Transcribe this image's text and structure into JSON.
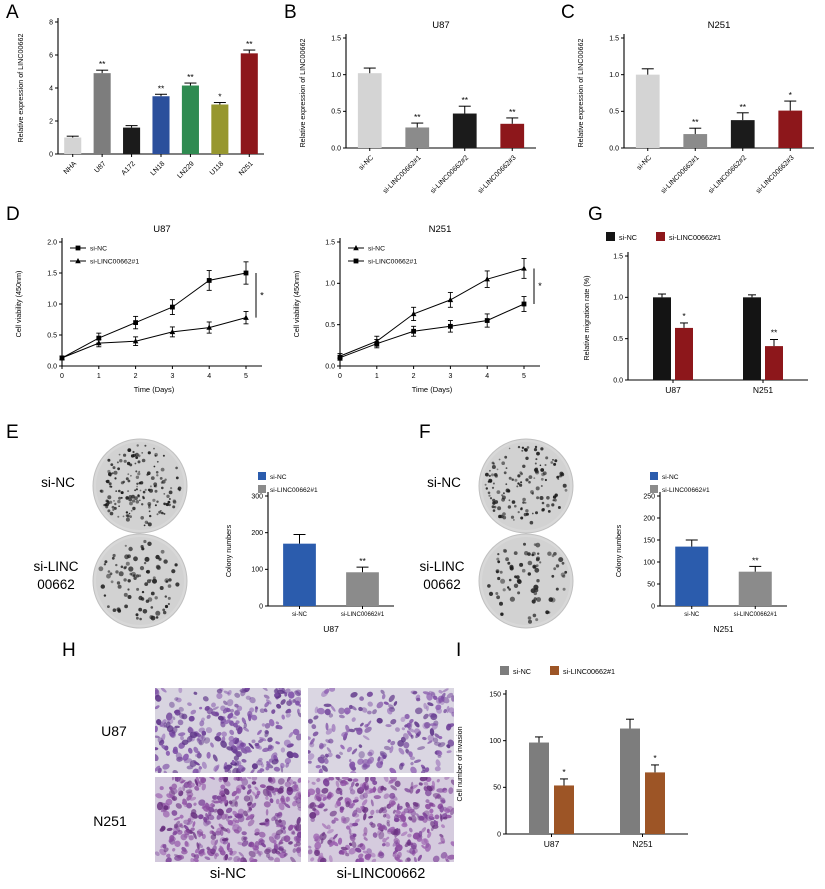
{
  "panel_labels": {
    "A": "A",
    "B": "B",
    "C": "C",
    "D": "D",
    "E": "E",
    "F": "F",
    "G": "G",
    "H": "H",
    "I": "I"
  },
  "panel_e": {
    "row1_label": "si-NC",
    "row2_line1": "si-LINC",
    "row2_line2": "00662"
  },
  "panel_f": {
    "row1_label": "si-NC",
    "row2_line1": "si-LINC",
    "row2_line2": "00662"
  },
  "panel_h": {
    "row1_label": "U87",
    "row2_label": "N251",
    "col1_label": "si-NC",
    "col2_label": "si-LINC00662"
  },
  "colony_plates": {
    "e_top": {
      "dots": 170,
      "rmin": 0.8,
      "rmax": 2.0,
      "seed": 11
    },
    "e_bottom": {
      "dots": 95,
      "rmin": 1.1,
      "rmax": 2.6,
      "seed": 22
    },
    "f_top": {
      "dots": 135,
      "rmin": 0.8,
      "rmax": 2.0,
      "seed": 33
    },
    "f_bottom": {
      "dots": 80,
      "rmin": 1.1,
      "rmax": 2.6,
      "seed": 44
    }
  },
  "transwell_images": {
    "u87_nc": {
      "cells": 270,
      "bg": "#d8d4e0",
      "seed": 7,
      "palette": [
        "#6f4198",
        "#7d4fa6",
        "#5d3387",
        "#8a5cb0"
      ]
    },
    "u87_si": {
      "cells": 200,
      "bg": "#dad6e2",
      "seed": 8,
      "palette": [
        "#71439a",
        "#8253a8",
        "#5f3589",
        "#8f61b3"
      ]
    },
    "n251_nc": {
      "cells": 380,
      "bg": "#d2c8dc",
      "seed": 9,
      "palette": [
        "#7a3f96",
        "#8b4d9f",
        "#693080",
        "#9a5fae"
      ]
    },
    "n251_si": {
      "cells": 340,
      "bg": "#d5cbde",
      "seed": 10,
      "palette": [
        "#7c4198",
        "#8d4fa1",
        "#6b3282",
        "#9c61b0"
      ]
    }
  },
  "chart_data": [
    {
      "id": "chartA",
      "type": "bar",
      "title": "",
      "ylabel": "Relative expression of LINC00662",
      "categories": [
        "NHA",
        "U87",
        "A172",
        "LN18",
        "LN229",
        "U118",
        "N251"
      ],
      "values": [
        1.0,
        4.9,
        1.6,
        3.5,
        4.15,
        3.0,
        6.1
      ],
      "errors": [
        0.08,
        0.18,
        0.12,
        0.12,
        0.15,
        0.12,
        0.2
      ],
      "sig": [
        "",
        "**",
        "",
        "**",
        "**",
        "*",
        "**"
      ],
      "bar_colors": [
        "#d4d4d4",
        "#7d7d7d",
        "#1b1b1b",
        "#2b4f9c",
        "#2f8b51",
        "#97972f",
        "#8d171b"
      ],
      "ylim": [
        0,
        8
      ],
      "yticks": [
        0,
        2,
        4,
        6,
        8
      ],
      "ytick_labels": [
        "0",
        "2",
        "4",
        "6",
        "8"
      ]
    },
    {
      "id": "chartB",
      "type": "bar",
      "title": "U87",
      "ylabel": "Relative expression of LINC00662",
      "categories": [
        "si-NC",
        "si-LINC00662#1",
        "si-LINC00662#2",
        "si-LINC00662#3"
      ],
      "values": [
        1.02,
        0.28,
        0.47,
        0.33
      ],
      "errors": [
        0.07,
        0.06,
        0.1,
        0.08
      ],
      "sig": [
        "",
        "**",
        "**",
        "**"
      ],
      "bar_colors": [
        "#d4d4d4",
        "#8b8b8b",
        "#1b1b1b",
        "#8d171b"
      ],
      "ylim": [
        0,
        1.5
      ],
      "yticks": [
        0,
        0.5,
        1,
        1.5
      ],
      "ytick_labels": [
        "0.0",
        "0.5",
        "1.0",
        "1.5"
      ]
    },
    {
      "id": "chartC",
      "type": "bar",
      "title": "N251",
      "ylabel": "Relative expression of LINC00662",
      "categories": [
        "si-NC",
        "si-LINC00662#1",
        "si-LINC00662#2",
        "si-LINC00662#3"
      ],
      "values": [
        1.0,
        0.19,
        0.38,
        0.51
      ],
      "errors": [
        0.08,
        0.08,
        0.1,
        0.13
      ],
      "sig": [
        "",
        "**",
        "**",
        "*"
      ],
      "bar_colors": [
        "#d4d4d4",
        "#8b8b8b",
        "#1b1b1b",
        "#8d171b"
      ],
      "ylim": [
        0,
        1.5
      ],
      "yticks": [
        0,
        0.5,
        1,
        1.5
      ],
      "ytick_labels": [
        "0.0",
        "0.5",
        "1.0",
        "1.5"
      ]
    },
    {
      "id": "chartD1",
      "type": "line",
      "title": "U87",
      "xlabel": "Time (Days)",
      "ylabel": "Cell viability (450nm)",
      "x": [
        0,
        1,
        2,
        3,
        4,
        5
      ],
      "xtick_labels": [
        "0",
        "1",
        "2",
        "3",
        "4",
        "5"
      ],
      "ylim": [
        0,
        2
      ],
      "yticks": [
        0,
        0.5,
        1,
        1.5,
        2
      ],
      "ytick_labels": [
        "0.0",
        "0.5",
        "1.0",
        "1.5",
        "2.0"
      ],
      "series": [
        {
          "name": "si-NC",
          "marker": "square",
          "values": [
            0.13,
            0.45,
            0.7,
            0.95,
            1.38,
            1.5
          ],
          "errors": [
            0.03,
            0.08,
            0.1,
            0.12,
            0.16,
            0.18
          ]
        },
        {
          "name": "si-LINC00662#1",
          "marker": "triangle",
          "values": [
            0.13,
            0.37,
            0.4,
            0.55,
            0.62,
            0.78
          ],
          "errors": [
            0.03,
            0.06,
            0.07,
            0.08,
            0.09,
            0.1
          ]
        }
      ],
      "sig": "*"
    },
    {
      "id": "chartD2",
      "type": "line",
      "title": "N251",
      "xlabel": "Time (Days)",
      "ylabel": "Cell viability (450nm)",
      "x": [
        0,
        1,
        2,
        3,
        4,
        5
      ],
      "xtick_labels": [
        "0",
        "1",
        "2",
        "3",
        "4",
        "5"
      ],
      "ylim": [
        0,
        1.5
      ],
      "yticks": [
        0,
        0.5,
        1,
        1.5
      ],
      "ytick_labels": [
        "0.0",
        "0.5",
        "1.0",
        "1.5"
      ],
      "series": [
        {
          "name": "si-NC",
          "marker": "triangle",
          "values": [
            0.12,
            0.3,
            0.63,
            0.8,
            1.05,
            1.18
          ],
          "errors": [
            0.03,
            0.06,
            0.08,
            0.09,
            0.1,
            0.12
          ]
        },
        {
          "name": "si-LINC00662#1",
          "marker": "square",
          "values": [
            0.1,
            0.27,
            0.42,
            0.48,
            0.55,
            0.75
          ],
          "errors": [
            0.03,
            0.05,
            0.06,
            0.07,
            0.08,
            0.09
          ]
        }
      ],
      "sig": "*"
    },
    {
      "id": "chartG",
      "type": "grouped_bar",
      "ylabel": "Relative migration rate (%)",
      "categories": [
        "U87",
        "N251"
      ],
      "series": [
        {
          "name": "si-NC",
          "color": "#141414",
          "values": [
            1.0,
            1.0
          ],
          "errors": [
            0.04,
            0.03
          ],
          "sig": [
            "",
            ""
          ]
        },
        {
          "name": "si-LINC00662#1",
          "color": "#8d171b",
          "values": [
            0.63,
            0.41
          ],
          "errors": [
            0.06,
            0.08
          ],
          "sig": [
            "*",
            "**"
          ]
        }
      ],
      "ylim": [
        0,
        1.5
      ],
      "yticks": [
        0,
        0.5,
        1,
        1.5
      ],
      "ytick_labels": [
        "0.0",
        "0.5",
        "1.0",
        "1.5"
      ],
      "legend_pos": "top"
    },
    {
      "id": "chartE",
      "type": "bar",
      "title": "",
      "ylabel": "Colony numbers",
      "xlabel": "U87",
      "categories": [
        "si-NC",
        "si-LINC00662#1"
      ],
      "values": [
        170,
        92
      ],
      "errors": [
        25,
        14
      ],
      "sig": [
        "",
        "**"
      ],
      "bar_colors": [
        "#2b5cad",
        "#8b8b8b"
      ],
      "ylim": [
        0,
        300
      ],
      "yticks": [
        0,
        100,
        200,
        300
      ],
      "ytick_labels": [
        "0",
        "100",
        "200",
        "300"
      ],
      "legend": [
        {
          "label": "si-NC",
          "color": "#2b5cad"
        },
        {
          "label": "si-LINC00662#1",
          "color": "#8b8b8b"
        }
      ]
    },
    {
      "id": "chartF",
      "type": "bar",
      "title": "",
      "ylabel": "Colony numbers",
      "xlabel": "N251",
      "categories": [
        "si-NC",
        "si-LINC00662#1"
      ],
      "values": [
        135,
        78
      ],
      "errors": [
        15,
        12
      ],
      "sig": [
        "",
        "**"
      ],
      "bar_colors": [
        "#2b5cad",
        "#8b8b8b"
      ],
      "ylim": [
        0,
        250
      ],
      "yticks": [
        0,
        50,
        100,
        150,
        200,
        250
      ],
      "ytick_labels": [
        "0",
        "50",
        "100",
        "150",
        "200",
        "250"
      ],
      "legend": [
        {
          "label": "si-NC",
          "color": "#2b5cad"
        },
        {
          "label": "si-LINC00662#1",
          "color": "#8b8b8b"
        }
      ]
    },
    {
      "id": "chartI",
      "type": "grouped_bar",
      "ylabel": "Cell number of invasion",
      "categories": [
        "U87",
        "N251"
      ],
      "series": [
        {
          "name": "si-NC",
          "color": "#7d7d7d",
          "values": [
            98,
            113
          ],
          "errors": [
            6,
            10
          ],
          "sig": [
            "",
            ""
          ]
        },
        {
          "name": "si-LINC00662#1",
          "color": "#9d5526",
          "values": [
            52,
            66
          ],
          "errors": [
            7,
            8
          ],
          "sig": [
            "*",
            "*"
          ]
        }
      ],
      "ylim": [
        0,
        150
      ],
      "yticks": [
        0,
        50,
        100,
        150
      ],
      "ytick_labels": [
        "0",
        "50",
        "100",
        "150"
      ],
      "legend_pos": "top"
    }
  ]
}
